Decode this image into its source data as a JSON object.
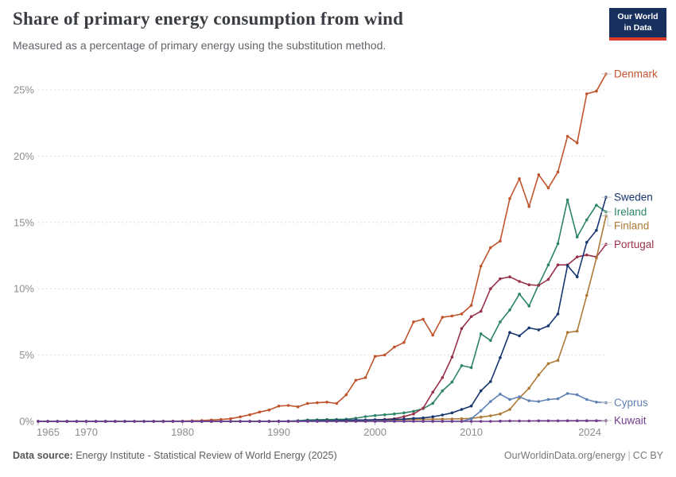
{
  "header": {
    "title": "Share of primary energy consumption from wind",
    "subtitle": "Measured as a percentage of primary energy using the substitution method.",
    "logo": {
      "line1": "Our World",
      "line2": "in Data",
      "bg_color": "#18305e",
      "accent_color": "#dc3d2a"
    }
  },
  "footer": {
    "source_label": "Data source:",
    "source_text": "Energy Institute - Statistical Review of World Energy (2025)",
    "site_link": "OurWorldinData.org/energy",
    "separator": "|",
    "license": "CC BY"
  },
  "chart_data": {
    "type": "line",
    "title": "Share of primary energy consumption from wind",
    "subtitle": "Measured as a percentage of primary energy using the substitution method.",
    "grid": "horizontal-dashed",
    "legend_position": "right-line-end-labels",
    "ylim": [
      0,
      26.5
    ],
    "yticks": [
      0,
      5,
      10,
      15,
      20,
      25
    ],
    "ytick_labels": [
      "0%",
      "5%",
      "10%",
      "15%",
      "20%",
      "25%"
    ],
    "xticks": [
      1965,
      1970,
      1980,
      1990,
      2000,
      2010,
      2024
    ],
    "xtick_labels": [
      "1965",
      "1970",
      "1980",
      "1990",
      "2000",
      "2010",
      "2024"
    ],
    "years": [
      1965,
      1966,
      1967,
      1968,
      1969,
      1970,
      1971,
      1972,
      1973,
      1974,
      1975,
      1976,
      1977,
      1978,
      1979,
      1980,
      1981,
      1982,
      1983,
      1984,
      1985,
      1986,
      1987,
      1988,
      1989,
      1990,
      1991,
      1992,
      1993,
      1994,
      1995,
      1996,
      1997,
      1998,
      1999,
      2000,
      2001,
      2002,
      2003,
      2004,
      2005,
      2006,
      2007,
      2008,
      2009,
      2010,
      2011,
      2012,
      2013,
      2014,
      2015,
      2016,
      2017,
      2018,
      2019,
      2020,
      2021,
      2022,
      2023,
      2024
    ],
    "series": [
      {
        "name": "Denmark",
        "color": "#c0542c",
        "values": [
          0,
          0,
          0,
          0,
          0,
          0,
          0,
          0,
          0,
          0,
          0,
          0,
          0,
          0.01,
          0.02,
          0.02,
          0.04,
          0.06,
          0.1,
          0.14,
          0.2,
          0.34,
          0.5,
          0.7,
          0.86,
          1.15,
          1.2,
          1.1,
          1.35,
          1.4,
          1.45,
          1.35,
          2.0,
          3.1,
          3.3,
          4.9,
          5.0,
          5.6,
          5.95,
          7.5,
          7.7,
          6.5,
          7.85,
          7.95,
          8.1,
          8.75,
          11.7,
          13.1,
          13.6,
          16.8,
          18.3,
          16.2,
          18.6,
          17.6,
          18.8,
          21.5,
          21.0,
          24.7,
          24.9,
          26.2
        ]
      },
      {
        "name": "Sweden",
        "color": "#17356e",
        "values": [
          0,
          0,
          0,
          0,
          0,
          0,
          0,
          0,
          0,
          0,
          0,
          0,
          0,
          0,
          0,
          0,
          0,
          0,
          0,
          0,
          0,
          0,
          0,
          0,
          0,
          0.01,
          0.02,
          0.03,
          0.04,
          0.05,
          0.06,
          0.07,
          0.09,
          0.1,
          0.1,
          0.12,
          0.12,
          0.15,
          0.17,
          0.22,
          0.26,
          0.35,
          0.48,
          0.64,
          0.9,
          1.16,
          2.3,
          3.0,
          4.8,
          6.7,
          6.45,
          7.05,
          6.9,
          7.2,
          8.1,
          11.75,
          10.9,
          13.5,
          14.4,
          16.9
        ]
      },
      {
        "name": "Ireland",
        "color": "#2c8465",
        "values": [
          0,
          0,
          0,
          0,
          0,
          0,
          0,
          0,
          0,
          0,
          0,
          0,
          0,
          0,
          0,
          0,
          0,
          0,
          0,
          0,
          0,
          0,
          0,
          0,
          0,
          0,
          0,
          0.05,
          0.1,
          0.12,
          0.14,
          0.15,
          0.16,
          0.24,
          0.36,
          0.44,
          0.5,
          0.56,
          0.64,
          0.76,
          0.96,
          1.36,
          2.3,
          2.96,
          4.2,
          4.05,
          6.6,
          6.1,
          7.5,
          8.4,
          9.6,
          8.7,
          10.3,
          11.8,
          13.4,
          16.7,
          13.9,
          15.2,
          16.3,
          15.8
        ]
      },
      {
        "name": "Finland",
        "color": "#ae7936",
        "values": [
          0,
          0,
          0,
          0,
          0,
          0,
          0,
          0,
          0,
          0,
          0,
          0,
          0,
          0,
          0,
          0,
          0,
          0,
          0,
          0,
          0,
          0,
          0,
          0,
          0,
          0,
          0,
          0.01,
          0.02,
          0.03,
          0.04,
          0.05,
          0.06,
          0.08,
          0.1,
          0.1,
          0.1,
          0.1,
          0.12,
          0.14,
          0.15,
          0.16,
          0.17,
          0.18,
          0.2,
          0.22,
          0.32,
          0.42,
          0.56,
          0.9,
          1.76,
          2.5,
          3.5,
          4.35,
          4.6,
          6.7,
          6.8,
          9.5,
          12.3,
          15.5
        ]
      },
      {
        "name": "Portugal",
        "color": "#98314a",
        "values": [
          0,
          0,
          0,
          0,
          0,
          0,
          0,
          0,
          0,
          0,
          0,
          0,
          0,
          0,
          0,
          0,
          0,
          0,
          0,
          0,
          0,
          0,
          0,
          0,
          0,
          0,
          0,
          0.01,
          0.02,
          0.03,
          0.03,
          0.04,
          0.05,
          0.07,
          0.1,
          0.12,
          0.15,
          0.2,
          0.36,
          0.56,
          1.0,
          2.2,
          3.3,
          4.85,
          7.0,
          7.9,
          8.3,
          10.0,
          10.75,
          10.9,
          10.55,
          10.3,
          10.25,
          10.7,
          11.8,
          11.8,
          12.4,
          12.55,
          12.4,
          13.35
        ]
      },
      {
        "name": "Cyprus",
        "color": "#5e82b4",
        "values": [
          0,
          0,
          0,
          0,
          0,
          0,
          0,
          0,
          0,
          0,
          0,
          0,
          0,
          0,
          0,
          0,
          0,
          0,
          0,
          0,
          0,
          0,
          0,
          0,
          0,
          0,
          0,
          0,
          0,
          0,
          0,
          0,
          0,
          0,
          0,
          0,
          0,
          0,
          0,
          0,
          0,
          0,
          0,
          0,
          0,
          0.2,
          0.8,
          1.5,
          2.05,
          1.65,
          1.85,
          1.55,
          1.5,
          1.65,
          1.7,
          2.1,
          2.0,
          1.65,
          1.45,
          1.4
        ]
      },
      {
        "name": "Kuwait",
        "color": "#713c8f",
        "values": [
          0,
          0,
          0,
          0,
          0,
          0,
          0,
          0,
          0,
          0,
          0,
          0,
          0,
          0,
          0,
          0,
          0,
          0,
          0,
          0,
          0,
          0,
          0,
          0,
          0,
          0,
          0,
          0,
          0,
          0,
          0,
          0,
          0,
          0,
          0,
          0,
          0,
          0,
          0,
          0,
          0,
          0,
          0,
          0,
          0,
          0,
          0,
          0,
          0.02,
          0.03,
          0.03,
          0.03,
          0.04,
          0.04,
          0.04,
          0.05,
          0.05,
          0.05,
          0.05,
          0.06
        ]
      }
    ]
  }
}
